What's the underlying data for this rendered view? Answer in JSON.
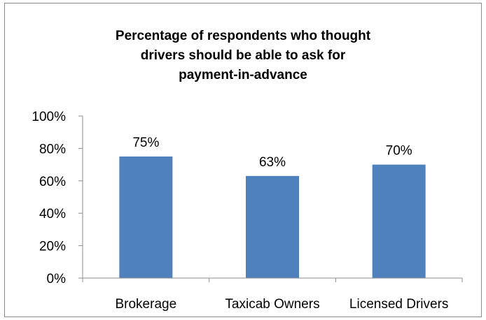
{
  "chart_data": {
    "type": "bar",
    "title_lines": [
      "Percentage of respondents who thought",
      "drivers should be able to ask for",
      "payment-in-advance"
    ],
    "categories": [
      "Brokerage",
      "Taxicab Owners",
      "Licensed Drivers"
    ],
    "values": [
      75,
      63,
      70
    ],
    "data_labels": [
      "75%",
      "63%",
      "70%"
    ],
    "y_ticks": [
      "0%",
      "20%",
      "40%",
      "60%",
      "80%",
      "100%"
    ],
    "ylim": [
      0,
      100
    ],
    "bar_color": "#4f81bd",
    "grid": false,
    "legend": "none"
  }
}
